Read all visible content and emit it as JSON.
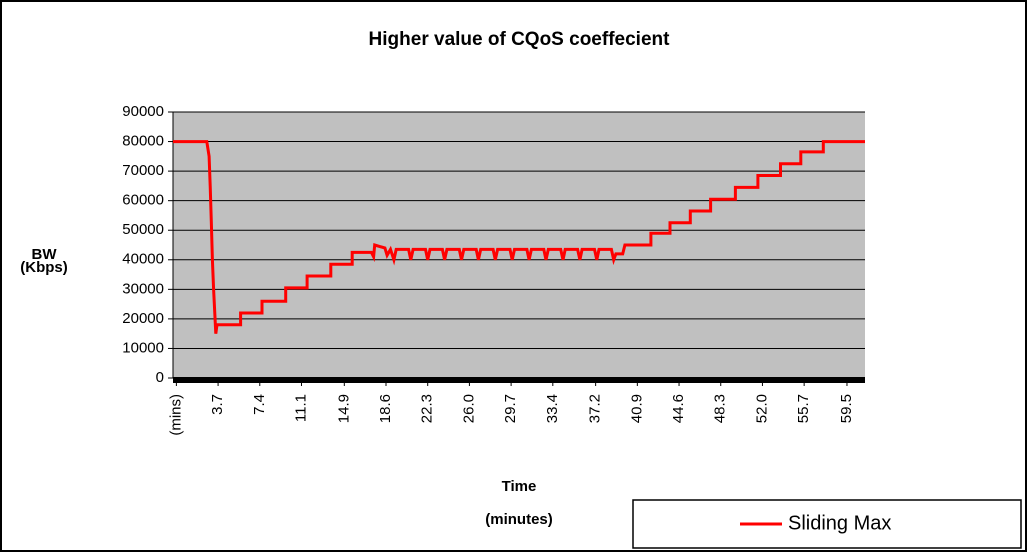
{
  "chart_data": {
    "type": "line",
    "title": "Higher value of CQoS coeffecient",
    "y_label": [
      "BW",
      "(Kbps)"
    ],
    "x_label": [
      "Time",
      "(minutes)"
    ],
    "xlim": [
      -0.3,
      61.1
    ],
    "ylim": [
      0,
      90000
    ],
    "yticks": [
      0,
      10000,
      20000,
      30000,
      40000,
      50000,
      60000,
      70000,
      80000,
      90000
    ],
    "xticks": [
      {
        "value": 0,
        "label": "(mins)"
      },
      3.7,
      7.4,
      11.1,
      14.9,
      18.6,
      22.3,
      {
        "value": 26,
        "label": "26.0"
      },
      29.7,
      33.4,
      37.2,
      40.9,
      44.6,
      48.3,
      {
        "value": 52,
        "label": "52.0"
      },
      55.7,
      59.5
    ],
    "grid": true,
    "plot_background": "#c0c0c0",
    "legend": "bottom-right",
    "x": [
      -0.3,
      2.7,
      2.9,
      3.0,
      3.1,
      3.2,
      3.3,
      3.5,
      3.6,
      5.7,
      5.7,
      7.6,
      7.6,
      9.7,
      9.7,
      11.6,
      11.6,
      13.7,
      13.7,
      15.6,
      15.6,
      17.3,
      17.5,
      17.6,
      18.5,
      18.7,
      19.0,
      19.3,
      19.5,
      20.6,
      20.8,
      21.0,
      22.1,
      22.3,
      22.5,
      23.6,
      23.8,
      24.0,
      25.1,
      25.3,
      25.5,
      26.6,
      26.8,
      27.0,
      28.1,
      28.3,
      28.5,
      29.6,
      29.8,
      30.0,
      31.1,
      31.3,
      31.5,
      32.6,
      32.8,
      33.0,
      34.1,
      34.3,
      34.5,
      35.6,
      35.8,
      36.0,
      37.1,
      37.3,
      37.5,
      38.6,
      38.8,
      39.0,
      39.6,
      39.8,
      42.1,
      42.1,
      43.8,
      43.8,
      45.6,
      45.6,
      47.4,
      47.4,
      49.6,
      49.6,
      51.6,
      51.6,
      53.6,
      53.6,
      55.4,
      55.4,
      57.4,
      57.4,
      61.1
    ],
    "series": [
      {
        "name": "Sliding Max",
        "color": "#ff0000",
        "values": [
          80000,
          80000,
          75000,
          65000,
          53000,
          40000,
          30000,
          15000,
          18000,
          18000,
          22000,
          22000,
          26000,
          26000,
          30500,
          30500,
          34500,
          34500,
          38500,
          38500,
          42500,
          42500,
          41000,
          45000,
          44000,
          41500,
          43500,
          40000,
          43500,
          43500,
          40000,
          43500,
          43500,
          40000,
          43500,
          43500,
          40000,
          43500,
          43500,
          40000,
          43500,
          43500,
          40000,
          43500,
          43500,
          40000,
          43500,
          43500,
          40000,
          43500,
          43500,
          40000,
          43500,
          43500,
          40000,
          43500,
          43500,
          40000,
          43500,
          43500,
          40000,
          43500,
          43500,
          40000,
          43500,
          43500,
          40000,
          42000,
          42000,
          45000,
          45000,
          49000,
          49000,
          52500,
          52500,
          56500,
          56500,
          60500,
          60500,
          64500,
          64500,
          68500,
          68500,
          72500,
          72500,
          76500,
          76500,
          80000,
          80000
        ]
      }
    ]
  }
}
